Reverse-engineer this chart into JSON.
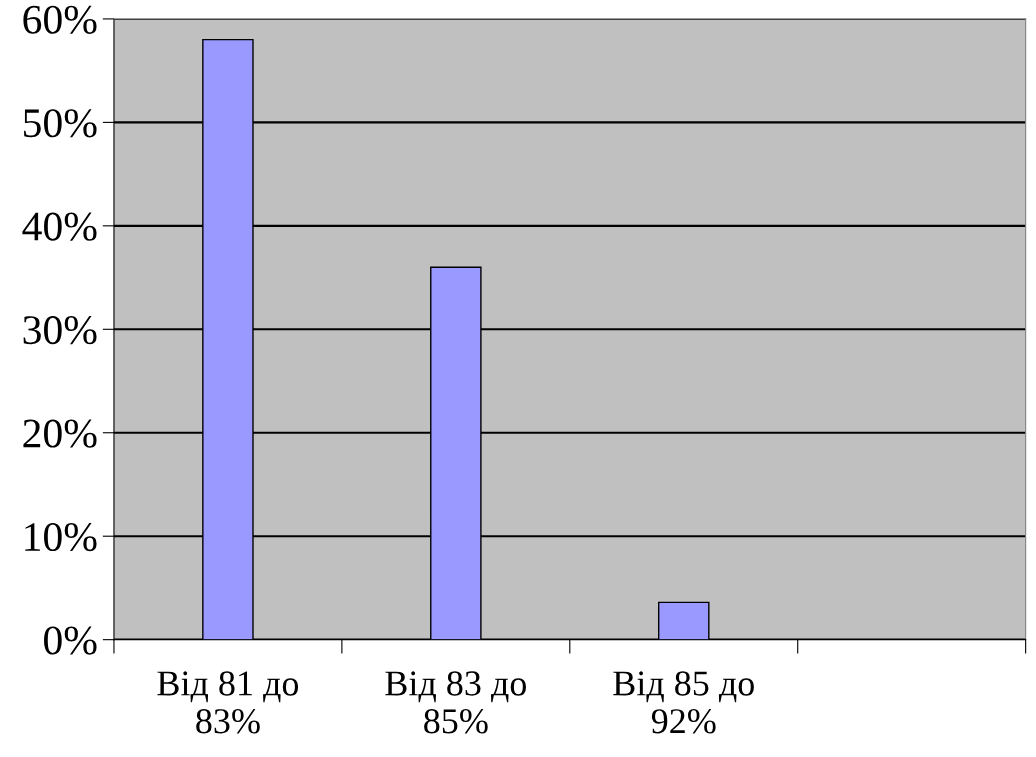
{
  "chart_data": {
    "type": "bar",
    "categories": [
      "Від 81 до 83%",
      "Від 83 до 85%",
      "Від 85 до 92%",
      null
    ],
    "values": [
      58,
      36,
      3.6,
      null
    ],
    "color": "#9999ff",
    "ylim": [
      0,
      60
    ],
    "yticks": [
      {
        "value": 0,
        "label": "0%"
      },
      {
        "value": 10,
        "label": "10%"
      },
      {
        "value": 20,
        "label": "20%"
      },
      {
        "value": 30,
        "label": "30%"
      },
      {
        "value": 40,
        "label": "40%"
      },
      {
        "value": 50,
        "label": "50%"
      },
      {
        "value": 60,
        "label": "60%"
      }
    ],
    "grid": "y"
  }
}
